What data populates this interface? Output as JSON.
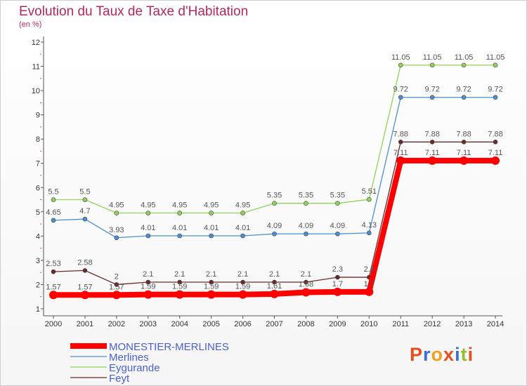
{
  "title": "Evolution du Taux de Taxe d'Habitation",
  "unit": "(en %)",
  "logo": {
    "text": "Proxiti",
    "colors": [
      "#e84d1c",
      "#3a6fd0",
      "#f0a020",
      "#e84d1c",
      "#3a6fd0",
      "#90c030",
      "#e84d1c"
    ]
  },
  "chart_data": {
    "type": "line",
    "x": [
      "2000",
      "2001",
      "2002",
      "2003",
      "2004",
      "2005",
      "2006",
      "2007",
      "2008",
      "2009",
      "2010",
      "2011",
      "2012",
      "2013",
      "2014"
    ],
    "yticks": [
      "1",
      "2",
      "3",
      "4",
      "5",
      "6",
      "7",
      "8",
      "9",
      "10",
      "11",
      "12"
    ],
    "ylim": [
      1,
      12
    ],
    "grid": false,
    "legend": "bottom-left",
    "series": [
      {
        "name": "MONESTIER-MERLINES",
        "color": "#ff0000",
        "values": [
          1.57,
          1.57,
          1.57,
          1.59,
          1.59,
          1.59,
          1.59,
          1.61,
          1.68,
          1.7,
          1.7,
          7.11,
          7.11,
          7.11,
          7.11
        ],
        "labels": [
          "1.57",
          "1.57",
          "1.57",
          "1.59",
          "1.59",
          "1.59",
          "1.59",
          "1.61",
          "1.68",
          "1.7",
          "1.7",
          "7.11",
          "7.11",
          "7.11",
          "7.11"
        ]
      },
      {
        "name": "Merlines",
        "color": "#4b8fd0",
        "values": [
          4.65,
          4.7,
          3.93,
          4.01,
          4.01,
          4.01,
          4.01,
          4.09,
          4.09,
          4.09,
          4.13,
          9.72,
          9.72,
          9.72,
          9.72
        ],
        "labels": [
          "4.65",
          "4.7",
          "3.93",
          "4.01",
          "4.01",
          "4.01",
          "4.01",
          "4.09",
          "4.09",
          "4.09",
          "4.13",
          "9.72",
          "9.72",
          "9.72",
          "9.72"
        ]
      },
      {
        "name": "Eygurande",
        "color": "#8ed35a",
        "values": [
          5.5,
          5.5,
          4.95,
          4.95,
          4.95,
          4.95,
          4.95,
          5.35,
          5.35,
          5.35,
          5.51,
          11.05,
          11.05,
          11.05,
          11.05
        ],
        "labels": [
          "5.5",
          "5.5",
          "4.95",
          "4.95",
          "4.95",
          "4.95",
          "4.95",
          "5.35",
          "5.35",
          "5.35",
          "5.51",
          "11.05",
          "11.05",
          "11.05",
          "11.05"
        ]
      },
      {
        "name": "Feyt",
        "color": "#6b2a2a",
        "values": [
          2.53,
          2.58,
          2,
          2.1,
          2.1,
          2.1,
          2.1,
          2.1,
          2.1,
          2.3,
          2.3,
          7.88,
          7.88,
          7.88,
          7.88
        ],
        "labels": [
          "2.53",
          "2.58",
          "2",
          "2.1",
          "2.1",
          "2.1",
          "2.1",
          "2.1",
          "2.1",
          "2.3",
          "2.3",
          "7.88",
          "7.88",
          "7.88",
          "7.88"
        ]
      }
    ]
  }
}
